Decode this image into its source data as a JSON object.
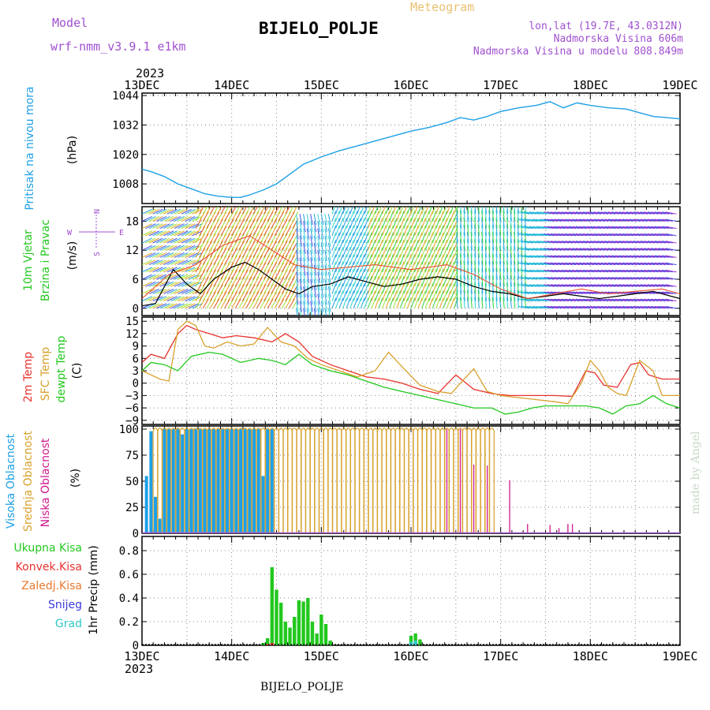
{
  "header": {
    "model_label": "Model",
    "model_name": "wrf-nmm_v3.9.1 e1km",
    "app_title": "Meteogram",
    "station": "BIJELO_POLJE",
    "lonlat": "lon,lat (19.7E, 43.0312N)",
    "altitude": "Nadmorska Visina 606m",
    "model_altitude": "Nadmorska Visina u modelu 808.849m",
    "credit": "made by Angel",
    "footer_station": "BIJELO_POLJE"
  },
  "colors": {
    "pressure": "#1ea0e6",
    "temp2m": "#e8322e",
    "sfc": "#d8a12c",
    "dewpt": "#22c81e",
    "purple": "#a050d0",
    "pink": "#d0188c",
    "blue": "#3a3ae0",
    "cyan": "#30c8c8"
  },
  "chart_data": [
    {
      "type": "line",
      "id": "pressure",
      "ylabel_left": "Pritisak na nivou mora",
      "unit": "(hPa)",
      "ylim": [
        1000,
        1045
      ],
      "yticks": [
        1008,
        1020,
        1032,
        1044
      ],
      "x_unit": "days since 13DEC 2023 00Z",
      "series": [
        {
          "color": "#1ea0e6",
          "x": [
            0,
            0.1,
            0.25,
            0.4,
            0.55,
            0.7,
            0.85,
            1,
            1.1,
            1.2,
            1.35,
            1.5,
            1.65,
            1.8,
            2,
            2.2,
            2.4,
            2.6,
            2.8,
            3,
            3.2,
            3.4,
            3.55,
            3.7,
            3.85,
            4,
            4.2,
            4.4,
            4.55,
            4.7,
            4.85,
            5,
            5.2,
            5.4,
            5.55,
            5.7,
            5.85,
            6
          ],
          "y": [
            1014,
            1013,
            1011,
            1008,
            1006,
            1004,
            1003,
            1002.5,
            1002.5,
            1003.5,
            1005.5,
            1008,
            1012,
            1016,
            1019,
            1021.5,
            1023.5,
            1025.5,
            1027.5,
            1029.5,
            1031,
            1033,
            1035,
            1034,
            1035.5,
            1037.5,
            1039,
            1040,
            1041.5,
            1039,
            1041,
            1040,
            1039,
            1038.5,
            1037,
            1035.5,
            1035,
            1034.5
          ]
        }
      ]
    },
    {
      "type": "line",
      "id": "wind",
      "ylabel_left": [
        "10m Vjetar",
        "Brzina i Pravac"
      ],
      "unit": "(m/s)",
      "ylim": [
        -1.5,
        21
      ],
      "yticks": [
        0,
        6,
        12,
        18
      ],
      "compass": [
        "N",
        "S",
        "W",
        "E"
      ],
      "series": [
        {
          "name": "speed",
          "color": "#000000",
          "x": [
            0,
            0.15,
            0.35,
            0.5,
            0.65,
            0.8,
            1,
            1.15,
            1.3,
            1.45,
            1.6,
            1.75,
            1.9,
            2.1,
            2.3,
            2.5,
            2.7,
            2.9,
            3.1,
            3.3,
            3.5,
            3.7,
            3.9,
            4.1,
            4.3,
            4.5,
            4.7,
            4.9,
            5.1,
            5.3,
            5.5,
            5.7,
            5.9,
            6
          ],
          "y": [
            0.5,
            1,
            8,
            5,
            3,
            6,
            8.5,
            9.5,
            8,
            6,
            4,
            3,
            4.5,
            5,
            6.5,
            5.5,
            4.5,
            5,
            6,
            6.5,
            6,
            4.5,
            3.5,
            3,
            2,
            2.5,
            3,
            2.5,
            2,
            2.5,
            3,
            3.5,
            2.5,
            2
          ]
        },
        {
          "name": "gust",
          "color": "#e8502e",
          "x": [
            0,
            0.3,
            0.6,
            0.9,
            1.2,
            1.45,
            1.7,
            2,
            2.3,
            2.6,
            3,
            3.4,
            3.7,
            4,
            4.3,
            4.6,
            4.9,
            5.2,
            5.5,
            5.8,
            6
          ],
          "y": [
            2,
            7,
            9,
            13,
            15,
            12,
            9,
            8,
            8.5,
            9,
            8,
            9,
            7,
            4,
            2,
            3,
            4,
            3,
            3.5,
            4,
            3
          ]
        }
      ]
    },
    {
      "type": "line",
      "id": "temperature",
      "ylabel_left": [
        {
          "text": "2m Temp",
          "color": "#e8322e"
        },
        {
          "text": "SFC Temp",
          "color": "#d8a12c"
        },
        {
          "text": "dewpt Temp",
          "color": "#22c81e"
        }
      ],
      "unit": "(C)",
      "ylim": [
        -10,
        16
      ],
      "yticks": [
        -9,
        -6,
        -3,
        0,
        3,
        6,
        9,
        12,
        15
      ],
      "series": [
        {
          "name": "2m Temp",
          "color": "#e8322e",
          "x": [
            0,
            0.1,
            0.25,
            0.4,
            0.5,
            0.6,
            0.75,
            0.9,
            1.05,
            1.25,
            1.45,
            1.6,
            1.75,
            1.9,
            2.1,
            2.3,
            2.5,
            2.7,
            2.9,
            3.1,
            3.3,
            3.5,
            3.7,
            3.9,
            4,
            4.1,
            4.2,
            4.3,
            4.4,
            4.6,
            4.8,
            4.95,
            5.05,
            5.15,
            5.3,
            5.45,
            5.55,
            5.65,
            5.8,
            6
          ],
          "y": [
            5,
            7,
            6,
            12,
            14,
            13,
            12,
            11,
            11.5,
            11,
            10,
            12,
            10,
            6.5,
            4.5,
            3,
            1.5,
            1,
            0,
            -1.5,
            -2.5,
            2,
            -1.5,
            -2.5,
            -2.8,
            -3,
            -3,
            -3,
            -3,
            -3,
            -3.2,
            3,
            2.5,
            -0.5,
            -1,
            4.5,
            5,
            2,
            1,
            1
          ]
        },
        {
          "name": "SFC Temp",
          "color": "#d8a12c",
          "x": [
            0,
            0.1,
            0.2,
            0.3,
            0.4,
            0.5,
            0.6,
            0.7,
            0.8,
            0.95,
            1.1,
            1.25,
            1.4,
            1.55,
            1.7,
            1.85,
            2,
            2.2,
            2.4,
            2.6,
            2.75,
            2.9,
            3.1,
            3.3,
            3.45,
            3.55,
            3.7,
            3.85,
            4,
            4.2,
            4.4,
            4.6,
            4.75,
            4.9,
            5,
            5.1,
            5.2,
            5.3,
            5.4,
            5.55,
            5.7,
            5.8,
            6
          ],
          "y": [
            3,
            2,
            1,
            0.5,
            13,
            15,
            14,
            9,
            8.5,
            10,
            9,
            9.5,
            13.5,
            10,
            9,
            6,
            4.5,
            3,
            1.5,
            3,
            7.5,
            4,
            -0.5,
            -2,
            -2.5,
            0,
            3.5,
            -2,
            -3,
            -3.5,
            -4,
            -4.5,
            -5,
            0,
            5.5,
            3,
            -1,
            -2.5,
            -3,
            5.5,
            3,
            -3,
            -3
          ]
        },
        {
          "name": "dewpt Temp",
          "color": "#22c81e",
          "x": [
            0,
            0.1,
            0.25,
            0.4,
            0.55,
            0.75,
            0.9,
            1.1,
            1.3,
            1.45,
            1.6,
            1.75,
            1.9,
            2.1,
            2.3,
            2.5,
            2.7,
            2.9,
            3.1,
            3.3,
            3.5,
            3.7,
            3.9,
            4.05,
            4.2,
            4.35,
            4.5,
            4.65,
            4.8,
            4.95,
            5.1,
            5.25,
            5.4,
            5.55,
            5.7,
            5.85,
            6
          ],
          "y": [
            3,
            5,
            4.5,
            3,
            6.5,
            7.5,
            7,
            5,
            6,
            5.5,
            4.5,
            7,
            4.5,
            3,
            2,
            0.5,
            -1,
            -2,
            -3,
            -4,
            -5,
            -6,
            -6,
            -7.5,
            -7,
            -6,
            -5.5,
            -5.5,
            -5.5,
            -5.5,
            -6,
            -7.5,
            -5.5,
            -5,
            -3,
            -5,
            -6
          ]
        }
      ]
    },
    {
      "type": "bar",
      "id": "clouds",
      "ylabel_left": [
        {
          "text": "Visoka Oblacnost",
          "color": "#1ea0e6"
        },
        {
          "text": "Srednja Oblacnost",
          "color": "#d8a12c"
        },
        {
          "text": "Niska Oblacnost",
          "color": "#d0188c"
        }
      ],
      "unit": "(%)",
      "ylim": [
        0,
        103
      ],
      "yticks": [
        0,
        25,
        50,
        75,
        100
      ],
      "series": [
        {
          "name": "Visoka Oblacnost",
          "color": "#1ea0e6",
          "x_start": 0.05,
          "x_end": 1.45,
          "step": 0.05,
          "values": [
            55,
            98,
            35,
            14,
            100,
            100,
            100,
            100,
            95,
            100,
            100,
            100,
            100,
            100,
            100,
            100,
            100,
            100,
            100,
            100,
            100,
            100,
            100,
            100,
            100,
            100,
            55,
            100,
            100
          ]
        },
        {
          "name": "Srednja Oblacnost",
          "color": "#d8a12c",
          "x_start": 0.15,
          "x_end": 3.9,
          "step": 0.05,
          "values": "hollow-100"
        },
        {
          "name": "Niska Oblacnost",
          "color": "#d0188c",
          "x": [
            3.4,
            3.55,
            3.7,
            3.85,
            4.1,
            4.3,
            4.55,
            4.65,
            4.75,
            4.8
          ],
          "values": [
            100,
            100,
            66,
            65,
            51,
            9,
            8,
            5,
            9,
            9
          ]
        }
      ]
    },
    {
      "type": "bar",
      "id": "precip",
      "legend": [
        {
          "text": "Ukupna Kisa",
          "color": "#22c81e"
        },
        {
          "text": "Konvek.Kisa",
          "color": "#e8322e"
        },
        {
          "text": "Zaledj.Kisa",
          "color": "#e8782e"
        },
        {
          "text": "Snijeg",
          "color": "#3a3ae0"
        },
        {
          "text": "Grad",
          "color": "#30c8c8"
        }
      ],
      "ylabel": "1hr Precip (mm)",
      "ylim": [
        0,
        0.92
      ],
      "yticks": [
        0,
        0.2,
        0.4,
        0.6,
        0.8
      ],
      "series": [
        {
          "name": "Ukupna Kisa",
          "color": "#22c81e",
          "x": [
            1.35,
            1.4,
            1.45,
            1.5,
            1.55,
            1.6,
            1.65,
            1.7,
            1.75,
            1.8,
            1.85,
            1.9,
            1.95,
            2.0,
            2.05,
            2.1,
            3.0,
            3.05,
            3.1
          ],
          "values": [
            0.02,
            0.06,
            0.66,
            0.47,
            0.36,
            0.2,
            0.15,
            0.24,
            0.38,
            0.37,
            0.4,
            0.2,
            0.1,
            0.26,
            0.18,
            0.04,
            0.08,
            0.1,
            0.05
          ]
        },
        {
          "name": "Konvek.Kisa",
          "color": "#e8322e",
          "x": [
            1.4,
            1.45
          ],
          "values": [
            0.01,
            0.02
          ]
        },
        {
          "name": "Grad",
          "color": "#30c8c8",
          "x": [
            3.0,
            3.05
          ],
          "values": [
            0.03,
            0.04
          ]
        }
      ]
    }
  ],
  "time_axis": {
    "year": "2023",
    "labels": [
      "13DEC",
      "14DEC",
      "15DEC",
      "16DEC",
      "17DEC",
      "18DEC",
      "19DEC"
    ],
    "values": [
      0,
      1,
      2,
      3,
      4,
      5,
      6
    ]
  }
}
